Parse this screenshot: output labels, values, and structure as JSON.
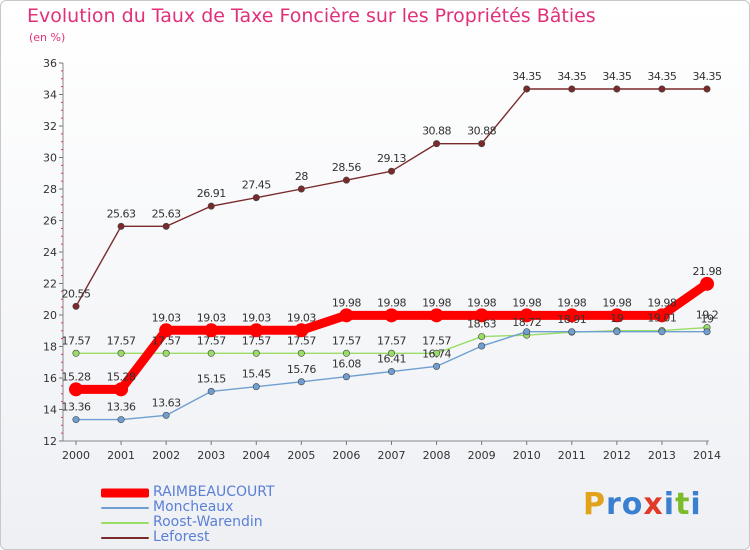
{
  "chart_data": {
    "type": "line",
    "title": "Evolution du Taux de Taxe Foncière sur les Propriétés Bâties",
    "subtitle": "(en %)",
    "x": [
      "2000",
      "2001",
      "2002",
      "2003",
      "2004",
      "2005",
      "2006",
      "2007",
      "2008",
      "2009",
      "2010",
      "2011",
      "2012",
      "2013",
      "2014"
    ],
    "ylim": [
      12,
      36
    ],
    "yticks": [
      12,
      14,
      16,
      18,
      20,
      22,
      24,
      26,
      28,
      30,
      32,
      34,
      36
    ],
    "grid": false,
    "legend_position": "bottom-left",
    "series": [
      {
        "name": "Leforest",
        "color": "#7a2a2a",
        "values": [
          20.55,
          25.63,
          25.63,
          26.91,
          27.45,
          28,
          28.56,
          29.13,
          30.88,
          30.88,
          34.35,
          34.35,
          34.35,
          34.35,
          34.35
        ],
        "labels": [
          "20.55",
          "25.63",
          "25.63",
          "26.91",
          "27.45",
          "28",
          "28.56",
          "29.13",
          "30.88",
          "30.88",
          "34.35",
          "34.35",
          "34.35",
          "34.35",
          "34.35"
        ]
      },
      {
        "name": "Roost-Warendin",
        "color": "#99dd66",
        "values": [
          17.57,
          17.57,
          17.57,
          17.57,
          17.57,
          17.57,
          17.57,
          17.57,
          17.57,
          18.63,
          18.72,
          18.91,
          19,
          19.01,
          19.2
        ],
        "labels": [
          "17.57",
          "17.57",
          "17.57",
          "17.57",
          "17.57",
          "17.57",
          "17.57",
          "17.57",
          "17.57",
          "18.63",
          "18.72",
          "18.91",
          "19",
          "19.01",
          "19.2"
        ]
      },
      {
        "name": "Moncheaux",
        "color": "#6f9fd0",
        "values": [
          13.36,
          13.36,
          13.63,
          15.15,
          15.45,
          15.76,
          16.08,
          16.41,
          16.74,
          18.03,
          18.94,
          18.94,
          18.94,
          18.94,
          18.94
        ],
        "labels": [
          "13.36",
          "13.36",
          "13.63",
          "15.15",
          "15.45",
          "15.76",
          "16.08",
          "16.41",
          "16.74",
          "",
          "",
          "",
          "",
          "",
          "19"
        ]
      },
      {
        "name": "RAIMBEAUCOURT",
        "color": "#ff0000",
        "values": [
          15.28,
          15.28,
          19.03,
          19.03,
          19.03,
          19.03,
          19.98,
          19.98,
          19.98,
          19.98,
          19.98,
          19.98,
          19.98,
          19.98,
          21.98
        ],
        "labels": [
          "15.28",
          "15.28",
          "19.03",
          "19.03",
          "19.03",
          "19.03",
          "19.98",
          "19.98",
          "19.98",
          "19.98",
          "19.98",
          "19.98",
          "19.98",
          "19.98",
          "21.98"
        ]
      }
    ]
  },
  "legend": [
    {
      "name": "RAIMBEAUCOURT",
      "color": "#ff0000"
    },
    {
      "name": "Moncheaux",
      "color": "#6f9fd0"
    },
    {
      "name": "Roost-Warendin",
      "color": "#99dd66"
    },
    {
      "name": "Leforest",
      "color": "#7a2a2a"
    }
  ],
  "brand": {
    "letters": [
      "P",
      "r",
      "o",
      "x",
      "i",
      "t",
      "i"
    ],
    "colors": [
      "#e2a21c",
      "#3a7fd0",
      "#3a7fd0",
      "#e23a28",
      "#3a7fd0",
      "#7dbb2a",
      "#3a7fd0"
    ]
  }
}
